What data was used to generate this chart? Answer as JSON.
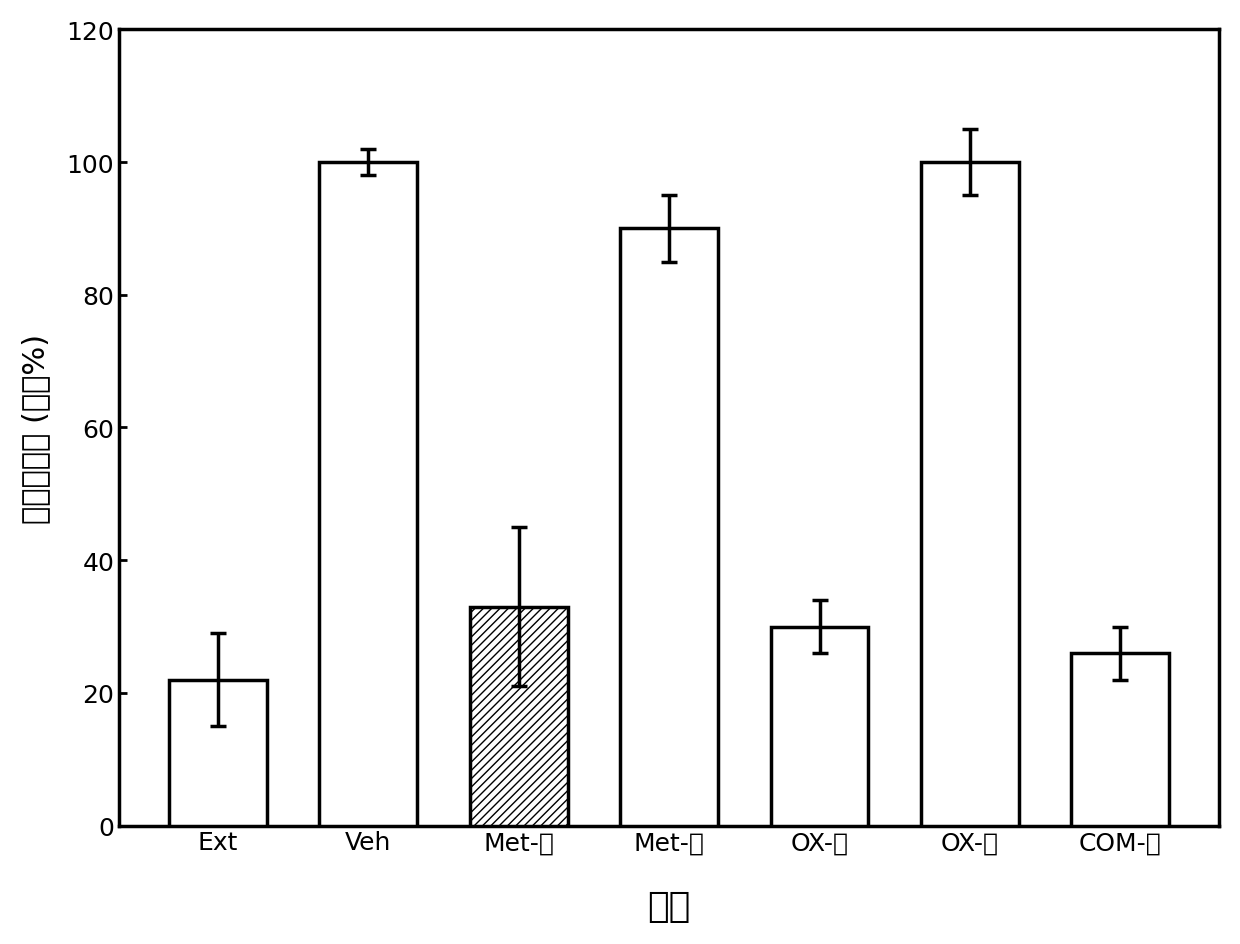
{
  "categories": [
    "Ext",
    "Veh",
    "Met-高",
    "Met-低",
    "OX-高",
    "OX-低",
    "COM-低"
  ],
  "values": [
    22,
    100,
    33,
    90,
    30,
    100,
    26
  ],
  "errors": [
    7,
    2,
    12,
    5,
    4,
    5,
    4
  ],
  "hatch_pattern": [
    "",
    "",
    "////",
    "",
    "",
    "",
    ""
  ],
  "bar_facecolor": [
    "white",
    "white",
    "white",
    "white",
    "white",
    "white",
    "white"
  ],
  "bar_edgecolor": "black",
  "ylabel": "可卡因输注 (基线%)",
  "xlabel": "处理",
  "ylim": [
    0,
    120
  ],
  "yticks": [
    0,
    20,
    40,
    60,
    80,
    100,
    120
  ],
  "axis_fontsize": 22,
  "tick_fontsize": 18,
  "bar_width": 0.65,
  "linewidth": 2.5,
  "capsize": 6
}
